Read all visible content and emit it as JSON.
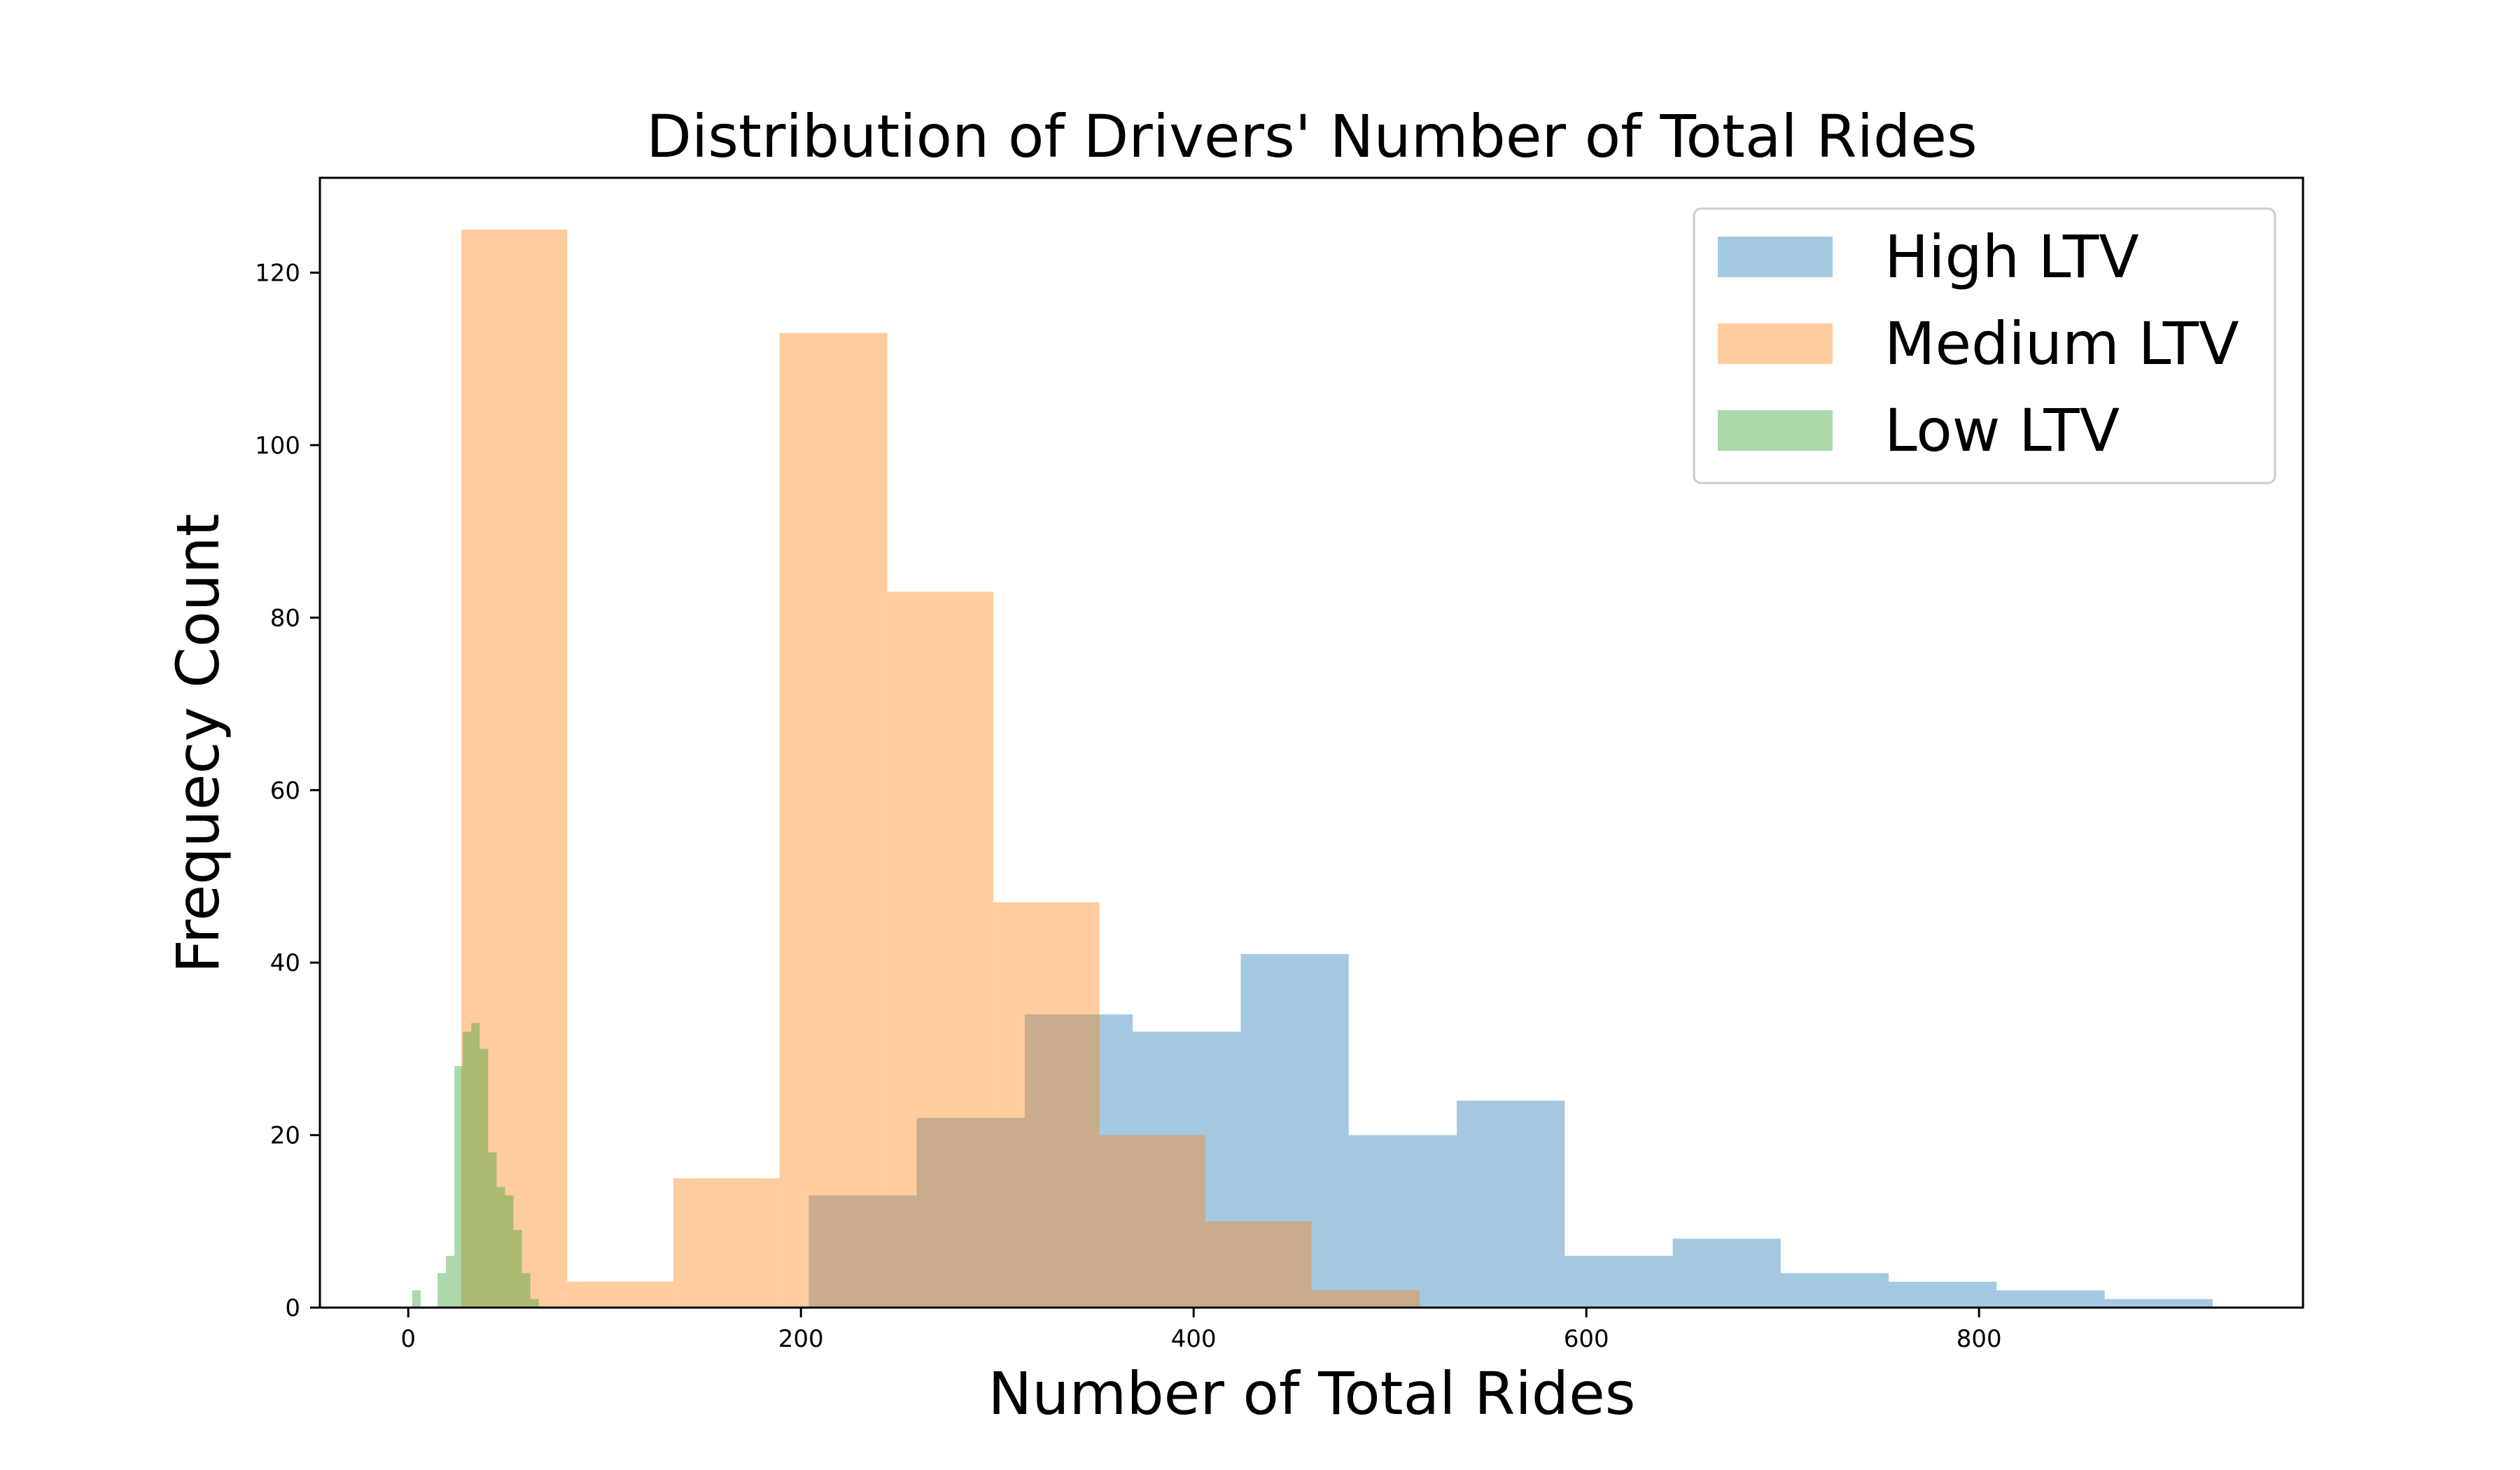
{
  "chart_data": {
    "type": "bar",
    "title": "Distribution of Drivers' Number of Total Rides",
    "xlabel": "Number of Total Rides",
    "ylabel": "Frequecy Count",
    "xlim": [
      -45,
      965
    ],
    "ylim": [
      0,
      131
    ],
    "xticks": [
      0,
      200,
      400,
      600,
      800
    ],
    "yticks": [
      0,
      20,
      40,
      60,
      80,
      100,
      120
    ],
    "legend_position": "top-right",
    "series": [
      {
        "name": "High LTV",
        "color": "#1f77b4",
        "alpha": 0.4,
        "bin_edges": [
          204,
          259,
          314,
          369,
          424,
          479,
          534,
          589,
          644,
          699,
          754,
          809,
          864,
          919
        ],
        "values": [
          13,
          22,
          34,
          32,
          41,
          20,
          24,
          6,
          8,
          4,
          3,
          2,
          1
        ]
      },
      {
        "name": "Medium LTV",
        "color": "#ff7f0e",
        "alpha": 0.4,
        "bin_edges": [
          27,
          81,
          135,
          189,
          244,
          298,
          352,
          406,
          460,
          515
        ],
        "values": [
          125,
          3,
          15,
          113,
          83,
          47,
          20,
          10,
          2
        ]
      },
      {
        "name": "Low LTV",
        "color": "#2ca02c",
        "alpha": 0.4,
        "bin_edges": [
          2,
          6.3,
          10.6,
          14.9,
          19.2,
          23.5,
          27.8,
          32.1,
          36.4,
          40.7,
          45.0,
          49.3,
          53.6,
          57.9,
          62.2,
          66.5
        ],
        "values": [
          2,
          0,
          0,
          4,
          6,
          28,
          32,
          33,
          30,
          18,
          14,
          13,
          9,
          4,
          1
        ]
      }
    ]
  }
}
